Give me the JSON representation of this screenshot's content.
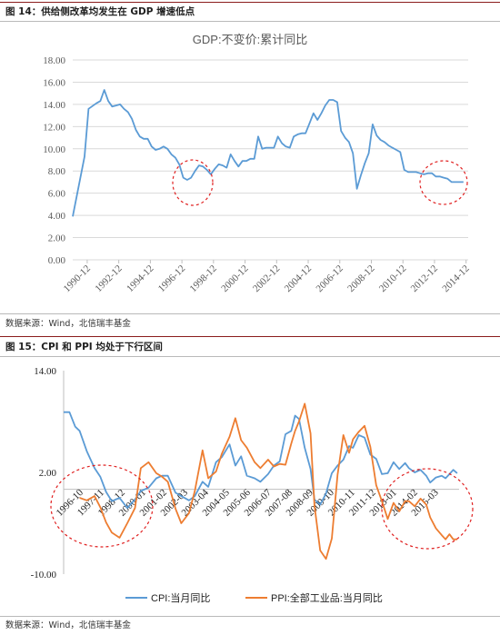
{
  "figure1": {
    "caption": "图 14：供给侧改革均发生在 GDP 增速低点",
    "source": "数据来源：Wind，北信瑞丰基金"
  },
  "figure2": {
    "caption": "图 15：CPI 和 PPI 均处于下行区间",
    "source": "数据来源：Wind，北信瑞丰基金"
  },
  "colors": {
    "cpi": "#5b9bd5",
    "ppi": "#ed7d31",
    "gdp": "#5b9bd5",
    "circle": "#e02020"
  },
  "chart_data": [
    {
      "type": "line",
      "title": "GDP:不变价:累计同比",
      "ylim": [
        0,
        18
      ],
      "yticks": [
        "0.00",
        "2.00",
        "4.00",
        "6.00",
        "8.00",
        "10.00",
        "12.00",
        "14.00",
        "16.00",
        "18.00"
      ],
      "xticks": [
        "1990-12",
        "1992-12",
        "1994-12",
        "1996-12",
        "1998-12",
        "2000-12",
        "2002-12",
        "2004-12",
        "2006-12",
        "2008-12",
        "2010-12",
        "2012-12",
        "2014-12"
      ],
      "grid": true,
      "series": [
        {
          "values": [
            [
              1990.0,
              3.9
            ],
            [
              1990.75,
              9.3
            ],
            [
              1991.0,
              13.6
            ],
            [
              1991.5,
              14.1
            ],
            [
              1991.75,
              14.3
            ],
            [
              1992.0,
              15.3
            ],
            [
              1992.25,
              14.3
            ],
            [
              1992.5,
              13.8
            ],
            [
              1992.75,
              13.9
            ],
            [
              1993.0,
              14.0
            ],
            [
              1993.25,
              13.6
            ],
            [
              1993.5,
              13.3
            ],
            [
              1993.75,
              12.7
            ],
            [
              1994.0,
              11.7
            ],
            [
              1994.25,
              11.1
            ],
            [
              1994.5,
              10.9
            ],
            [
              1994.75,
              10.9
            ],
            [
              1995.0,
              10.2
            ],
            [
              1995.25,
              9.9
            ],
            [
              1995.5,
              10.0
            ],
            [
              1995.75,
              10.2
            ],
            [
              1996.0,
              10.0
            ],
            [
              1996.25,
              9.5
            ],
            [
              1996.5,
              9.2
            ],
            [
              1996.75,
              8.6
            ],
            [
              1997.0,
              7.4
            ],
            [
              1997.25,
              7.2
            ],
            [
              1997.5,
              7.4
            ],
            [
              1997.75,
              8.0
            ],
            [
              1998.0,
              8.5
            ],
            [
              1998.25,
              8.4
            ],
            [
              1998.5,
              8.1
            ],
            [
              1998.75,
              7.7
            ],
            [
              1999.0,
              8.2
            ],
            [
              1999.25,
              8.6
            ],
            [
              1999.5,
              8.5
            ],
            [
              1999.75,
              8.3
            ],
            [
              2000.0,
              9.5
            ],
            [
              2000.25,
              8.9
            ],
            [
              2000.5,
              8.4
            ],
            [
              2000.75,
              8.9
            ],
            [
              2001.0,
              8.9
            ],
            [
              2001.25,
              9.1
            ],
            [
              2001.5,
              9.1
            ],
            [
              2001.75,
              11.1
            ],
            [
              2002.0,
              10.0
            ],
            [
              2002.25,
              10.1
            ],
            [
              2002.5,
              10.1
            ],
            [
              2002.75,
              10.1
            ],
            [
              2003.0,
              11.1
            ],
            [
              2003.25,
              10.5
            ],
            [
              2003.5,
              10.2
            ],
            [
              2003.75,
              10.1
            ],
            [
              2004.0,
              11.1
            ],
            [
              2004.25,
              11.3
            ],
            [
              2004.5,
              11.4
            ],
            [
              2004.75,
              11.4
            ],
            [
              2005.0,
              12.3
            ],
            [
              2005.25,
              13.2
            ],
            [
              2005.5,
              12.6
            ],
            [
              2005.75,
              13.2
            ],
            [
              2006.0,
              13.9
            ],
            [
              2006.25,
              14.4
            ],
            [
              2006.5,
              14.4
            ],
            [
              2006.75,
              14.2
            ],
            [
              2007.0,
              11.6
            ],
            [
              2007.25,
              11.0
            ],
            [
              2007.5,
              10.6
            ],
            [
              2007.75,
              9.6
            ],
            [
              2008.0,
              6.4
            ],
            [
              2008.25,
              7.6
            ],
            [
              2008.5,
              8.7
            ],
            [
              2008.75,
              9.6
            ],
            [
              2009.0,
              12.2
            ],
            [
              2009.25,
              11.2
            ],
            [
              2009.5,
              10.8
            ],
            [
              2009.75,
              10.6
            ],
            [
              2010.0,
              10.3
            ],
            [
              2010.25,
              10.1
            ],
            [
              2010.5,
              9.9
            ],
            [
              2010.75,
              9.7
            ],
            [
              2011.0,
              8.1
            ],
            [
              2011.25,
              7.9
            ],
            [
              2011.5,
              7.9
            ],
            [
              2011.75,
              7.9
            ],
            [
              2012.0,
              7.8
            ],
            [
              2012.25,
              7.7
            ],
            [
              2012.5,
              7.8
            ],
            [
              2012.75,
              7.8
            ],
            [
              2013.0,
              7.5
            ],
            [
              2013.25,
              7.5
            ],
            [
              2013.5,
              7.4
            ],
            [
              2013.75,
              7.3
            ],
            [
              2014.0,
              7.0
            ],
            [
              2014.25,
              7.0
            ],
            [
              2014.5,
              7.0
            ],
            [
              2014.75,
              7.0
            ]
          ]
        }
      ]
    },
    {
      "type": "line",
      "ylim": [
        -10,
        14
      ],
      "yticks": [
        "-10.00",
        "2.00",
        "14.00"
      ],
      "xticks": [
        "1996-10",
        "1997-11",
        "1998-12",
        "2000-01",
        "2001-02",
        "2002-03",
        "2003-04",
        "2004-05",
        "2005-06",
        "2006-07",
        "2007-08",
        "2008-09",
        "2009-10",
        "2010-11",
        "2011-12",
        "2013-01",
        "2014-02",
        "2015-03"
      ],
      "legend_position": "bottom",
      "series": [
        {
          "name": "CPI:当月同比",
          "values": [
            [
              1996.0,
              9.1
            ],
            [
              1996.3,
              9.1
            ],
            [
              1996.6,
              7.4
            ],
            [
              1996.83,
              6.9
            ],
            [
              1997.2,
              4.5
            ],
            [
              1997.6,
              2.5
            ],
            [
              1997.9,
              1.5
            ],
            [
              1998.2,
              -0.3
            ],
            [
              1998.5,
              -1.4
            ],
            [
              1998.9,
              -1.0
            ],
            [
              1999.3,
              -2.2
            ],
            [
              1999.7,
              -1.2
            ],
            [
              2000.0,
              -0.2
            ],
            [
              2000.4,
              0.2
            ],
            [
              2000.8,
              1.3
            ],
            [
              2001.1,
              1.6
            ],
            [
              2001.4,
              1.6
            ],
            [
              2001.8,
              -0.4
            ],
            [
              2002.1,
              -0.8
            ],
            [
              2002.5,
              -1.3
            ],
            [
              2002.8,
              -0.8
            ],
            [
              2003.2,
              0.9
            ],
            [
              2003.5,
              0.3
            ],
            [
              2003.9,
              3.2
            ],
            [
              2004.2,
              3.8
            ],
            [
              2004.6,
              5.3
            ],
            [
              2004.9,
              2.8
            ],
            [
              2005.2,
              3.9
            ],
            [
              2005.5,
              1.6
            ],
            [
              2005.9,
              1.3
            ],
            [
              2006.2,
              0.9
            ],
            [
              2006.6,
              1.8
            ],
            [
              2006.9,
              2.8
            ],
            [
              2007.2,
              3.3
            ],
            [
              2007.5,
              6.5
            ],
            [
              2007.8,
              6.9
            ],
            [
              2008.0,
              8.7
            ],
            [
              2008.2,
              8.3
            ],
            [
              2008.5,
              4.9
            ],
            [
              2008.8,
              2.4
            ],
            [
              2009.0,
              -1.2
            ],
            [
              2009.3,
              -1.8
            ],
            [
              2009.6,
              -0.5
            ],
            [
              2009.9,
              1.9
            ],
            [
              2010.2,
              2.8
            ],
            [
              2010.5,
              3.5
            ],
            [
              2010.8,
              5.1
            ],
            [
              2011.0,
              4.9
            ],
            [
              2011.3,
              6.4
            ],
            [
              2011.6,
              6.1
            ],
            [
              2011.9,
              4.1
            ],
            [
              2012.2,
              3.6
            ],
            [
              2012.5,
              1.8
            ],
            [
              2012.8,
              1.9
            ],
            [
              2013.1,
              3.2
            ],
            [
              2013.4,
              2.4
            ],
            [
              2013.7,
              3.1
            ],
            [
              2013.9,
              2.5
            ],
            [
              2014.2,
              2.0
            ],
            [
              2014.5,
              2.3
            ],
            [
              2014.8,
              1.6
            ],
            [
              2015.0,
              0.8
            ],
            [
              2015.3,
              1.4
            ],
            [
              2015.6,
              1.6
            ],
            [
              2015.8,
              1.3
            ],
            [
              2016.0,
              1.8
            ],
            [
              2016.2,
              2.3
            ],
            [
              2016.4,
              1.9
            ]
          ]
        },
        {
          "name": "PPI:全部工业品:当月同比",
          "values": [
            [
              1996.83,
              -1.0
            ],
            [
              1997.2,
              -1.3
            ],
            [
              1997.6,
              -0.8
            ],
            [
              1997.9,
              -2.1
            ],
            [
              1998.2,
              -3.9
            ],
            [
              1998.5,
              -5.1
            ],
            [
              1998.9,
              -5.7
            ],
            [
              1999.3,
              -4.0
            ],
            [
              1999.7,
              -2.2
            ],
            [
              2000.0,
              2.5
            ],
            [
              2000.4,
              3.2
            ],
            [
              2000.8,
              1.9
            ],
            [
              2001.1,
              1.5
            ],
            [
              2001.4,
              0.9
            ],
            [
              2001.8,
              -2.3
            ],
            [
              2002.1,
              -4.0
            ],
            [
              2002.5,
              -2.8
            ],
            [
              2002.8,
              -0.2
            ],
            [
              2003.2,
              4.6
            ],
            [
              2003.5,
              1.3
            ],
            [
              2003.9,
              2.1
            ],
            [
              2004.2,
              4.2
            ],
            [
              2004.6,
              6.2
            ],
            [
              2004.9,
              8.4
            ],
            [
              2005.2,
              5.8
            ],
            [
              2005.5,
              4.9
            ],
            [
              2005.9,
              3.2
            ],
            [
              2006.2,
              2.5
            ],
            [
              2006.6,
              3.5
            ],
            [
              2006.9,
              2.7
            ],
            [
              2007.2,
              3.0
            ],
            [
              2007.5,
              2.9
            ],
            [
              2007.8,
              5.4
            ],
            [
              2008.0,
              6.9
            ],
            [
              2008.2,
              8.0
            ],
            [
              2008.5,
              10.1
            ],
            [
              2008.8,
              6.6
            ],
            [
              2009.0,
              -1.9
            ],
            [
              2009.3,
              -7.2
            ],
            [
              2009.6,
              -8.2
            ],
            [
              2009.9,
              -5.8
            ],
            [
              2010.2,
              1.7
            ],
            [
              2010.5,
              6.4
            ],
            [
              2010.8,
              4.3
            ],
            [
              2011.0,
              5.9
            ],
            [
              2011.3,
              6.8
            ],
            [
              2011.6,
              7.5
            ],
            [
              2011.9,
              5.0
            ],
            [
              2012.2,
              0.5
            ],
            [
              2012.5,
              -1.4
            ],
            [
              2012.8,
              -3.5
            ],
            [
              2013.1,
              -1.6
            ],
            [
              2013.4,
              -2.6
            ],
            [
              2013.7,
              -1.4
            ],
            [
              2013.9,
              -1.4
            ],
            [
              2014.2,
              -2.0
            ],
            [
              2014.5,
              -1.1
            ],
            [
              2014.8,
              -1.8
            ],
            [
              2015.0,
              -3.3
            ],
            [
              2015.3,
              -4.6
            ],
            [
              2015.6,
              -5.4
            ],
            [
              2015.8,
              -5.9
            ],
            [
              2016.0,
              -5.3
            ],
            [
              2016.2,
              -5.9
            ],
            [
              2016.4,
              -5.9
            ]
          ]
        }
      ]
    }
  ]
}
